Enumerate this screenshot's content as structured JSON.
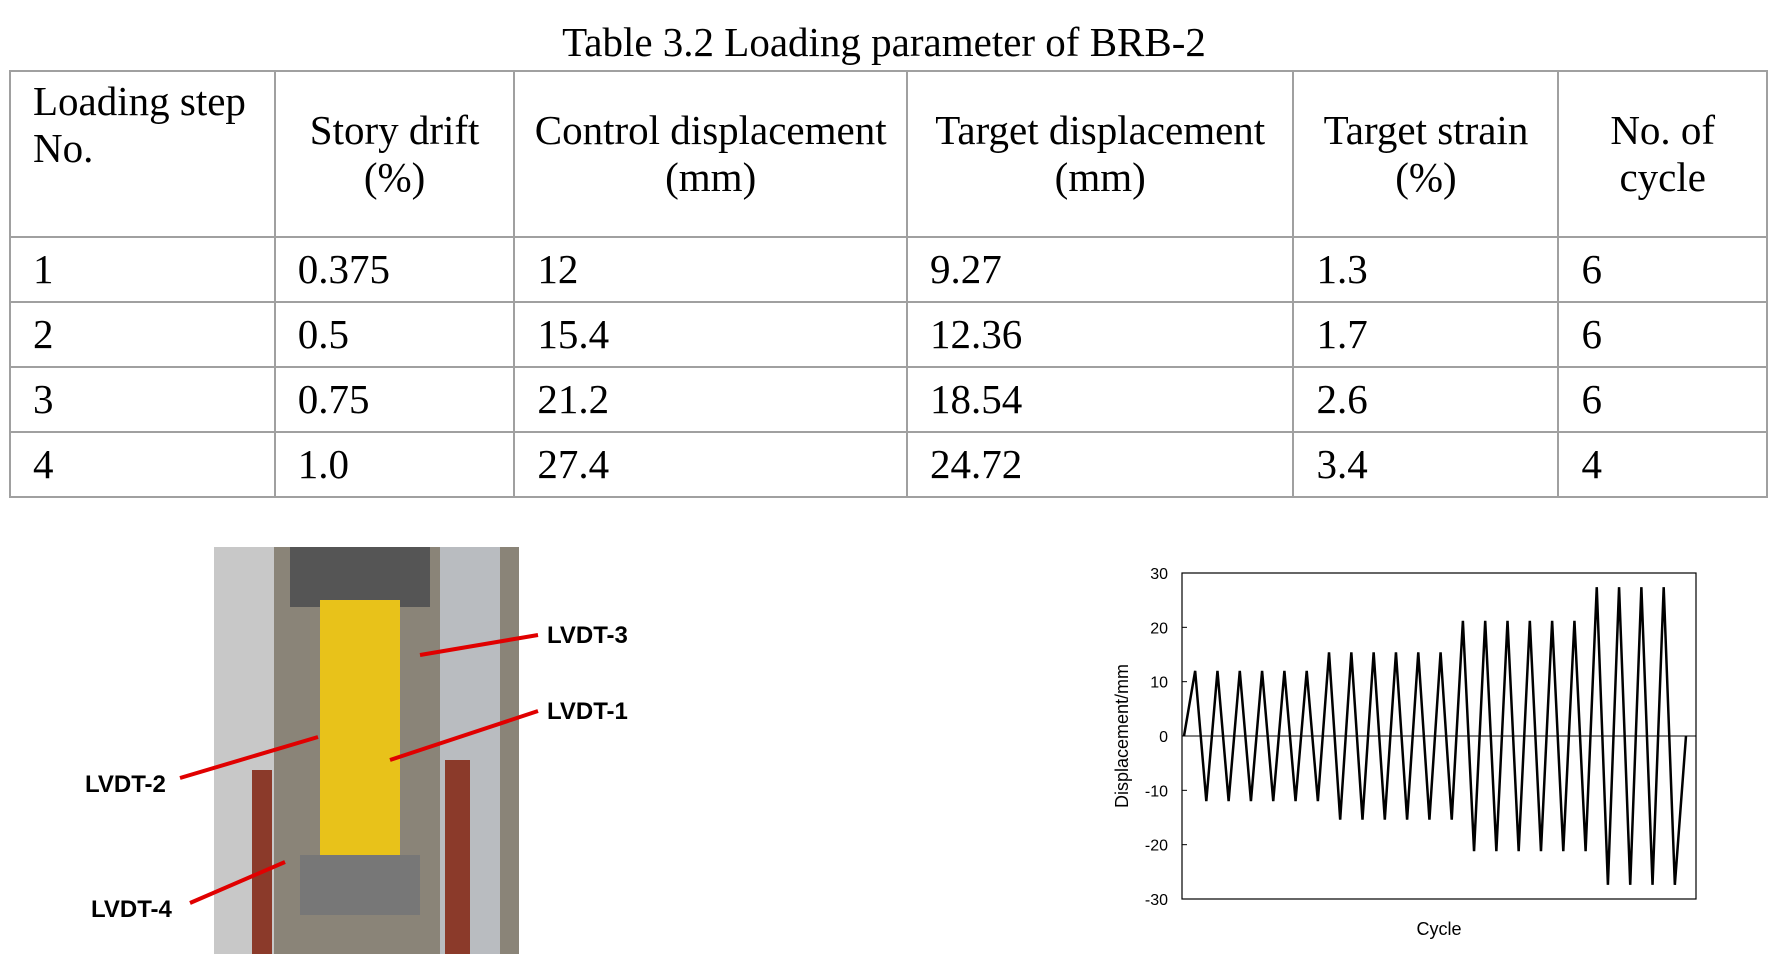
{
  "title": "Table 3.2 Loading parameter of BRB-2",
  "table": {
    "header": [
      "Loading step No.",
      "Story drift (%)",
      "Control displacement (mm)",
      "Target displacement (mm)",
      "Target strain (%)",
      "No. of cycle"
    ],
    "rows": [
      [
        "1",
        "0.375",
        "12",
        "9.27",
        "1.3",
        "6"
      ],
      [
        "2",
        "0.5",
        "15.4",
        "12.36",
        "1.7",
        "6"
      ],
      [
        "3",
        "0.75",
        "21.2",
        "18.54",
        "2.6",
        "6"
      ],
      [
        "4",
        "1.0",
        "27.4",
        "24.72",
        "3.4",
        "4"
      ]
    ]
  },
  "photo": {
    "labels": [
      "LVDT-3",
      "LVDT-1",
      "LVDT-2",
      "LVDT-4"
    ]
  },
  "chart_data": {
    "type": "line",
    "xlabel": "Cycle",
    "ylabel": "Displacement/mm",
    "color": "#000000",
    "ylim": [
      -30,
      30
    ],
    "yticks": [
      -30,
      -20,
      -10,
      0,
      10,
      20,
      30
    ],
    "values": [
      0,
      12,
      -12,
      12,
      -12,
      12,
      -12,
      12,
      -12,
      12,
      -12,
      12,
      -12,
      15.4,
      -15.4,
      15.4,
      -15.4,
      15.4,
      -15.4,
      15.4,
      -15.4,
      15.4,
      -15.4,
      15.4,
      -15.4,
      21.2,
      -21.2,
      21.2,
      -21.2,
      21.2,
      -21.2,
      21.2,
      -21.2,
      21.2,
      -21.2,
      21.2,
      -21.2,
      27.4,
      -27.4,
      27.4,
      -27.4,
      27.4,
      -27.4,
      27.4,
      -27.4,
      0
    ]
  }
}
